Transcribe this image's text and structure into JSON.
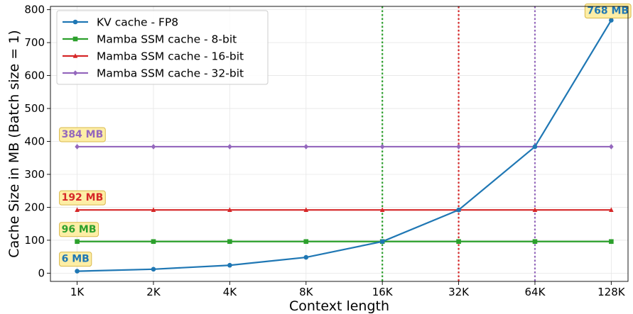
{
  "chart_data": {
    "type": "line",
    "xlabel": "Context length",
    "ylabel": "Cache Size in MB (Batch size = 1)",
    "x_scale": "log2",
    "categories": [
      "1K",
      "2K",
      "4K",
      "8K",
      "16K",
      "32K",
      "64K",
      "128K"
    ],
    "x": [
      1,
      2,
      4,
      8,
      16,
      32,
      64,
      128
    ],
    "ylim": [
      -25,
      810
    ],
    "yticks": [
      0,
      100,
      200,
      300,
      400,
      500,
      600,
      700,
      800
    ],
    "grid": true,
    "legend_position": "top-left",
    "series": [
      {
        "name": "KV cache - FP8",
        "color": "#1f77b4",
        "marker": "circle",
        "values": [
          6,
          12,
          24,
          48,
          96,
          192,
          384,
          768
        ]
      },
      {
        "name": "Mamba SSM cache - 8-bit",
        "color": "#2ca02c",
        "marker": "square",
        "values": [
          96,
          96,
          96,
          96,
          96,
          96,
          96,
          96
        ]
      },
      {
        "name": "Mamba SSM cache - 16-bit",
        "color": "#d62728",
        "marker": "triangle",
        "values": [
          192,
          192,
          192,
          192,
          192,
          192,
          192,
          192
        ]
      },
      {
        "name": "Mamba SSM cache - 32-bit",
        "color": "#9467bd",
        "marker": "diamond",
        "values": [
          384,
          384,
          384,
          384,
          384,
          384,
          384,
          384
        ]
      }
    ],
    "vlines": [
      {
        "x": 16,
        "color": "#2ca02c"
      },
      {
        "x": 32,
        "color": "#d62728"
      },
      {
        "x": 64,
        "color": "#9467bd"
      }
    ],
    "annotations": [
      {
        "text": "6 MB",
        "x": 1,
        "y": 6,
        "color": "#1f77b4"
      },
      {
        "text": "96 MB",
        "x": 1,
        "y": 96,
        "color": "#2ca02c"
      },
      {
        "text": "192 MB",
        "x": 1,
        "y": 192,
        "color": "#d62728"
      },
      {
        "text": "384 MB",
        "x": 1,
        "y": 384,
        "color": "#9467bd"
      },
      {
        "text": "768 MB",
        "x": 128,
        "y": 768,
        "color": "#1f77b4"
      }
    ]
  }
}
